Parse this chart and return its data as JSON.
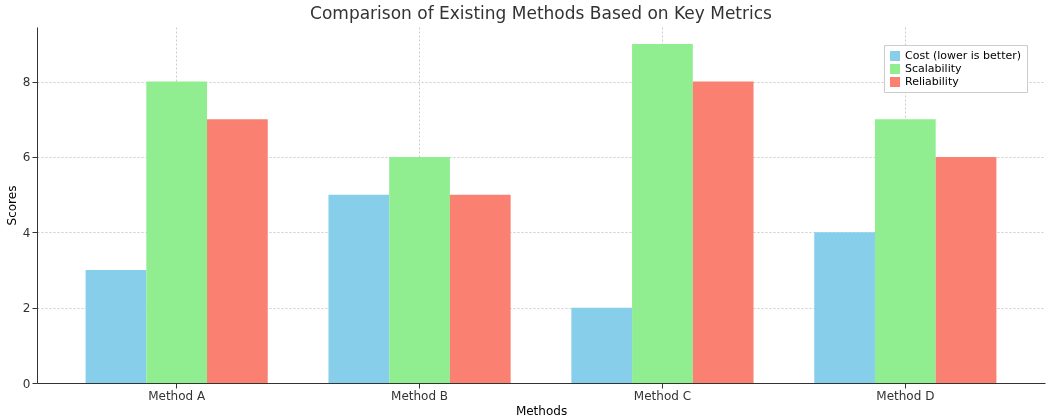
{
  "chart_data": {
    "type": "bar",
    "title": "Comparison of Existing Methods Based on Key Metrics",
    "xlabel": "Methods",
    "ylabel": "Scores",
    "categories": [
      "Method A",
      "Method B",
      "Method C",
      "Method D"
    ],
    "series": [
      {
        "name": "Cost (lower is better)",
        "color": "#87ceeb",
        "values": [
          3,
          5,
          2,
          4
        ]
      },
      {
        "name": "Scalability",
        "color": "#90ee90",
        "values": [
          8,
          6,
          9,
          7
        ]
      },
      {
        "name": "Reliability",
        "color": "#fa8072",
        "values": [
          7,
          5,
          8,
          6
        ]
      }
    ],
    "ylim": [
      0,
      9.45
    ],
    "yticks": [
      0,
      2,
      4,
      6,
      8
    ],
    "grid": true,
    "legend": "top right"
  }
}
